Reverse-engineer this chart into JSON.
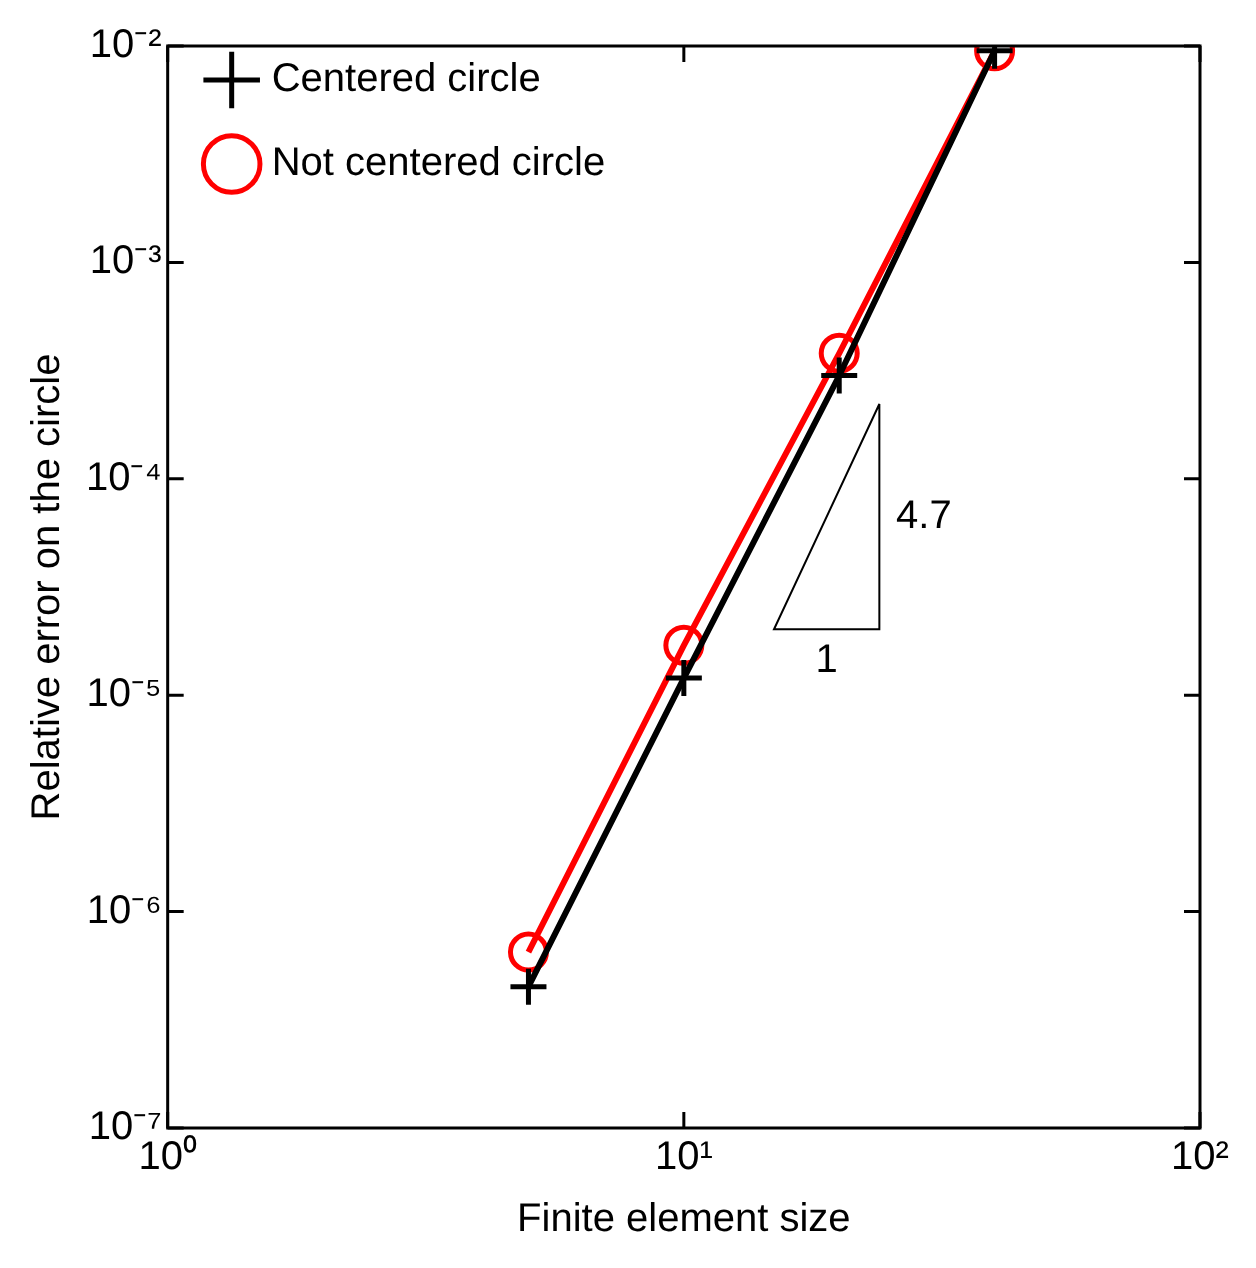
{
  "chart_data": {
    "type": "line",
    "xlabel": "Finite element size",
    "ylabel": "Relative error on the circle",
    "x": [
      5,
      10,
      20,
      40
    ],
    "series": [
      {
        "name": "Centered circle",
        "color": "#000000",
        "marker": "cross",
        "values": [
          4.5e-07,
          1.2e-05,
          0.0003,
          0.0095
        ]
      },
      {
        "name": "Not centered circle",
        "color": "#ff0000",
        "marker": "circle",
        "values": [
          6.5e-07,
          1.7e-05,
          0.00038,
          0.0095
        ]
      }
    ],
    "log": "xy",
    "xlim": [
      1,
      100
    ],
    "xticks": [
      {
        "value": 1,
        "label": "10⁰"
      },
      {
        "value": 10,
        "label": "10¹"
      },
      {
        "value": 100,
        "label": "10²"
      }
    ],
    "ylim": [
      1e-07,
      0.01
    ],
    "yticks": [
      {
        "value": 1e-07,
        "label": "10⁻⁷"
      },
      {
        "value": 1e-06,
        "label": "10⁻⁶"
      },
      {
        "value": 1e-05,
        "label": "10⁻⁵"
      },
      {
        "value": 0.0001,
        "label": "10⁻⁴"
      },
      {
        "value": 0.001,
        "label": "10⁻³"
      },
      {
        "value": 0.01,
        "label": "10⁻²"
      }
    ],
    "grid": false,
    "legend": "top left",
    "line_style": "solid",
    "annotations": [
      "4.7",
      "1"
    ]
  }
}
